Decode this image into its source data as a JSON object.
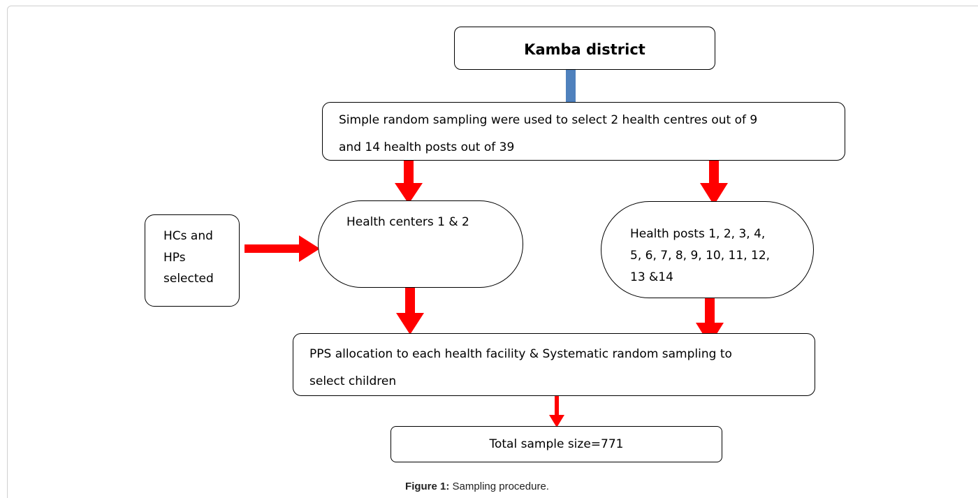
{
  "nodes": [
    {
      "lines": [
        "Kamba district"
      ]
    },
    {
      "lines": [
        "Simple random sampling were used to select 2 health centres out of 9",
        "and 14 health posts out of 39"
      ]
    },
    {
      "lines": [
        "HCs and",
        "HPs",
        "selected"
      ]
    },
    {
      "lines": [
        "Health centers 1 & 2"
      ]
    },
    {
      "lines": [
        "Health posts 1, 2, 3, 4,",
        "5, 6, 7, 8, 9, 10, 11, 12,",
        "13 &14"
      ]
    },
    {
      "lines": [
        "PPS allocation to each health facility & Systematic random sampling to",
        "select children"
      ]
    },
    {
      "lines": [
        "Total sample size=771"
      ]
    }
  ],
  "caption": {
    "label": "Figure 1:",
    "text": "Sampling procedure."
  }
}
